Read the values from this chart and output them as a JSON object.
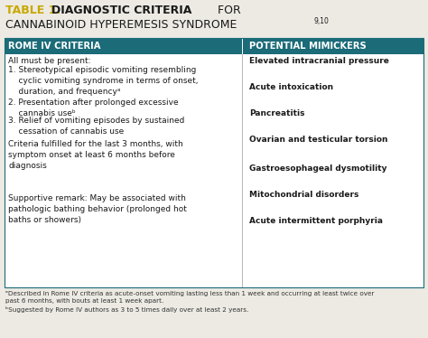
{
  "title_prefix": "TABLE 1.",
  "title_bold": "DIAGNOSTIC CRITERIA",
  "title_for": " FOR",
  "title_line2": "CANNABINOID HYPEREMESIS SYNDROME",
  "title_superscript": "9,10",
  "header_left": "ROME IV CRITERIA",
  "header_right": "POTENTIAL MIMICKERS",
  "header_bg": "#1b6b78",
  "header_text_color": "#ffffff",
  "body_bg": "#ffffff",
  "outer_bg": "#eceae3",
  "title_color_prefix": "#c8a800",
  "title_color_main": "#1a1a1a",
  "right_content": [
    "Elevated intracranial pressure",
    "Acute intoxication",
    "Pancreatitis",
    "Ovarian and testicular torsion",
    "Gastroesophageal dysmotility",
    "Mitochondrial disorders",
    "Acute intermittent porphyria"
  ],
  "footnote_a": "ᵃDescribed in Rome IV criteria as acute-onset vomiting lasting less than 1 week and occurring at least twice over\npast 6 months, with bouts at least 1 week apart.",
  "footnote_b": "ᵇSuggested by Rome IV authors as 3 to 5 times daily over at least 2 years.",
  "divider_color": "#aaaaaa",
  "border_color": "#1b6b78"
}
